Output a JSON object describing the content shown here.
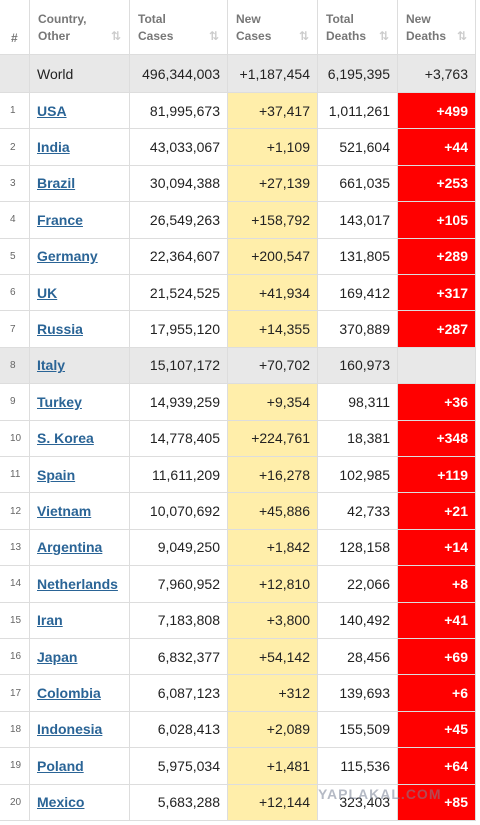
{
  "table": {
    "header": [
      "#",
      "Country,\nOther",
      "Total\nCases",
      "New\nCases",
      "Total\nDeaths",
      "New\nDeaths"
    ],
    "world": [
      "World",
      "496,344,003",
      "+1,187,454",
      "6,195,395",
      "+3,763"
    ],
    "rows": [
      [
        "1",
        "USA",
        "81,995,673",
        "+37,417",
        "1,011,261",
        "+499"
      ],
      [
        "2",
        "India",
        "43,033,067",
        "+1,109",
        "521,604",
        "+44"
      ],
      [
        "3",
        "Brazil",
        "30,094,388",
        "+27,139",
        "661,035",
        "+253"
      ],
      [
        "4",
        "France",
        "26,549,263",
        "+158,792",
        "143,017",
        "+105"
      ],
      [
        "5",
        "Germany",
        "22,364,607",
        "+200,547",
        "131,805",
        "+289"
      ],
      [
        "6",
        "UK",
        "21,524,525",
        "+41,934",
        "169,412",
        "+317"
      ],
      [
        "7",
        "Russia",
        "17,955,120",
        "+14,355",
        "370,889",
        "+287"
      ],
      [
        "8",
        "Italy",
        "15,107,172",
        "+70,702",
        "160,973",
        null
      ],
      [
        "9",
        "Turkey",
        "14,939,259",
        "+9,354",
        "98,311",
        "+36"
      ],
      [
        "10",
        "S. Korea",
        "14,778,405",
        "+224,761",
        "18,381",
        "+348"
      ],
      [
        "11",
        "Spain",
        "11,611,209",
        "+16,278",
        "102,985",
        "+119"
      ],
      [
        "12",
        "Vietnam",
        "10,070,692",
        "+45,886",
        "42,733",
        "+21"
      ],
      [
        "13",
        "Argentina",
        "9,049,250",
        "+1,842",
        "128,158",
        "+14"
      ],
      [
        "14",
        "Netherlands",
        "7,960,952",
        "+12,810",
        "22,066",
        "+8"
      ],
      [
        "15",
        "Iran",
        "7,183,808",
        "+3,800",
        "140,492",
        "+41"
      ],
      [
        "16",
        "Japan",
        "6,832,377",
        "+54,142",
        "28,456",
        "+69"
      ],
      [
        "17",
        "Colombia",
        "6,087,123",
        "+312",
        "139,693",
        "+6"
      ],
      [
        "18",
        "Indonesia",
        "6,028,413",
        "+2,089",
        "155,509",
        "+45"
      ],
      [
        "19",
        "Poland",
        "5,975,034",
        "+1,481",
        "115,536",
        "+64"
      ],
      [
        "20",
        "Mexico",
        "5,683,288",
        "+12,144",
        "323,403",
        "+85"
      ]
    ],
    "watermark": "YAPLAKAL.COM"
  }
}
